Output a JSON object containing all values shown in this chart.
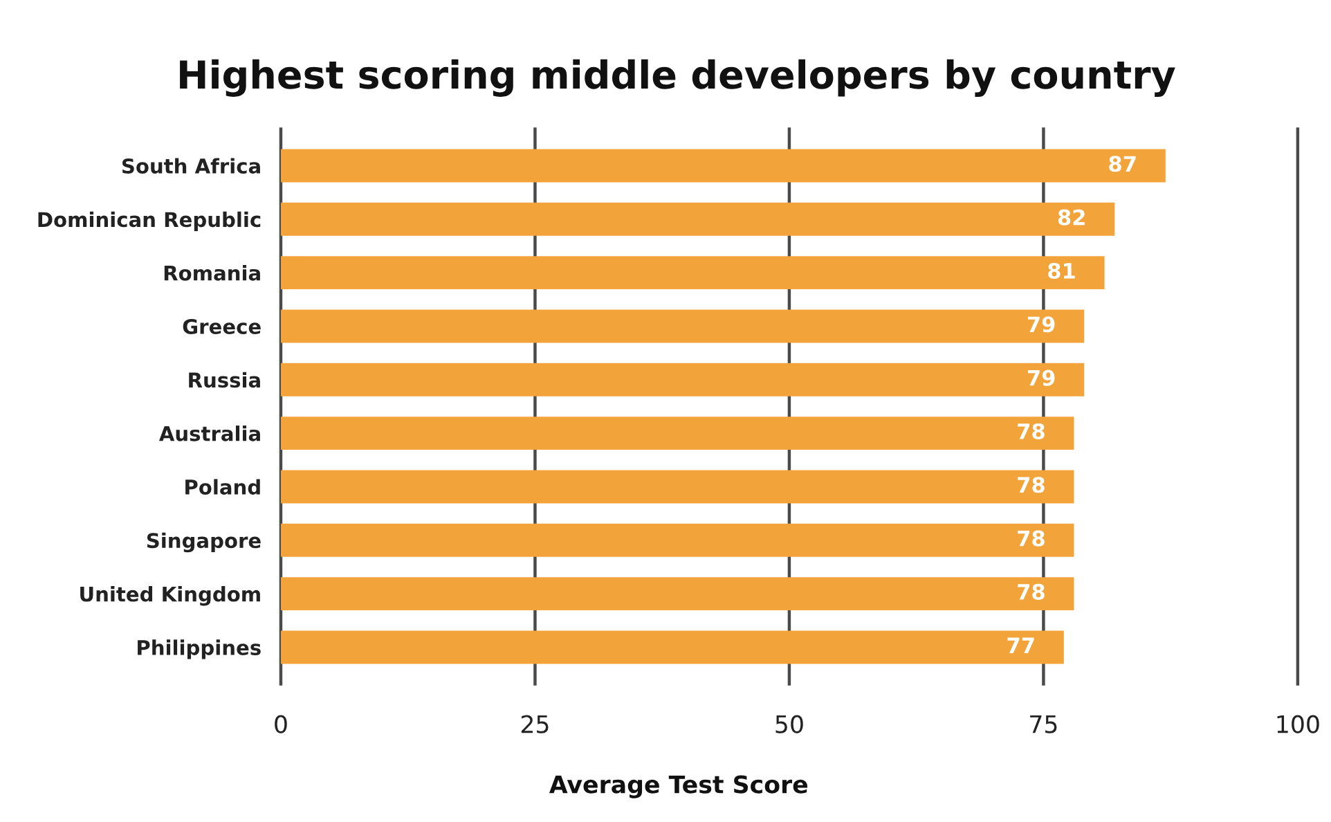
{
  "chart_data": {
    "type": "bar",
    "orientation": "horizontal",
    "title": "Highest scoring middle developers by country",
    "xlabel": "Average Test Score",
    "categories": [
      "South Africa",
      "Dominican Republic",
      "Romania",
      "Greece",
      "Russia",
      "Australia",
      "Poland",
      "Singapore",
      "United Kingdom",
      "Philippines"
    ],
    "values": [
      87,
      82,
      81,
      79,
      79,
      78,
      78,
      78,
      78,
      77
    ],
    "color": "#f2a33a",
    "xlim": [
      0,
      100
    ],
    "xticks": [
      0,
      25,
      50,
      75,
      100
    ],
    "grid": "x",
    "data_labels": true
  }
}
